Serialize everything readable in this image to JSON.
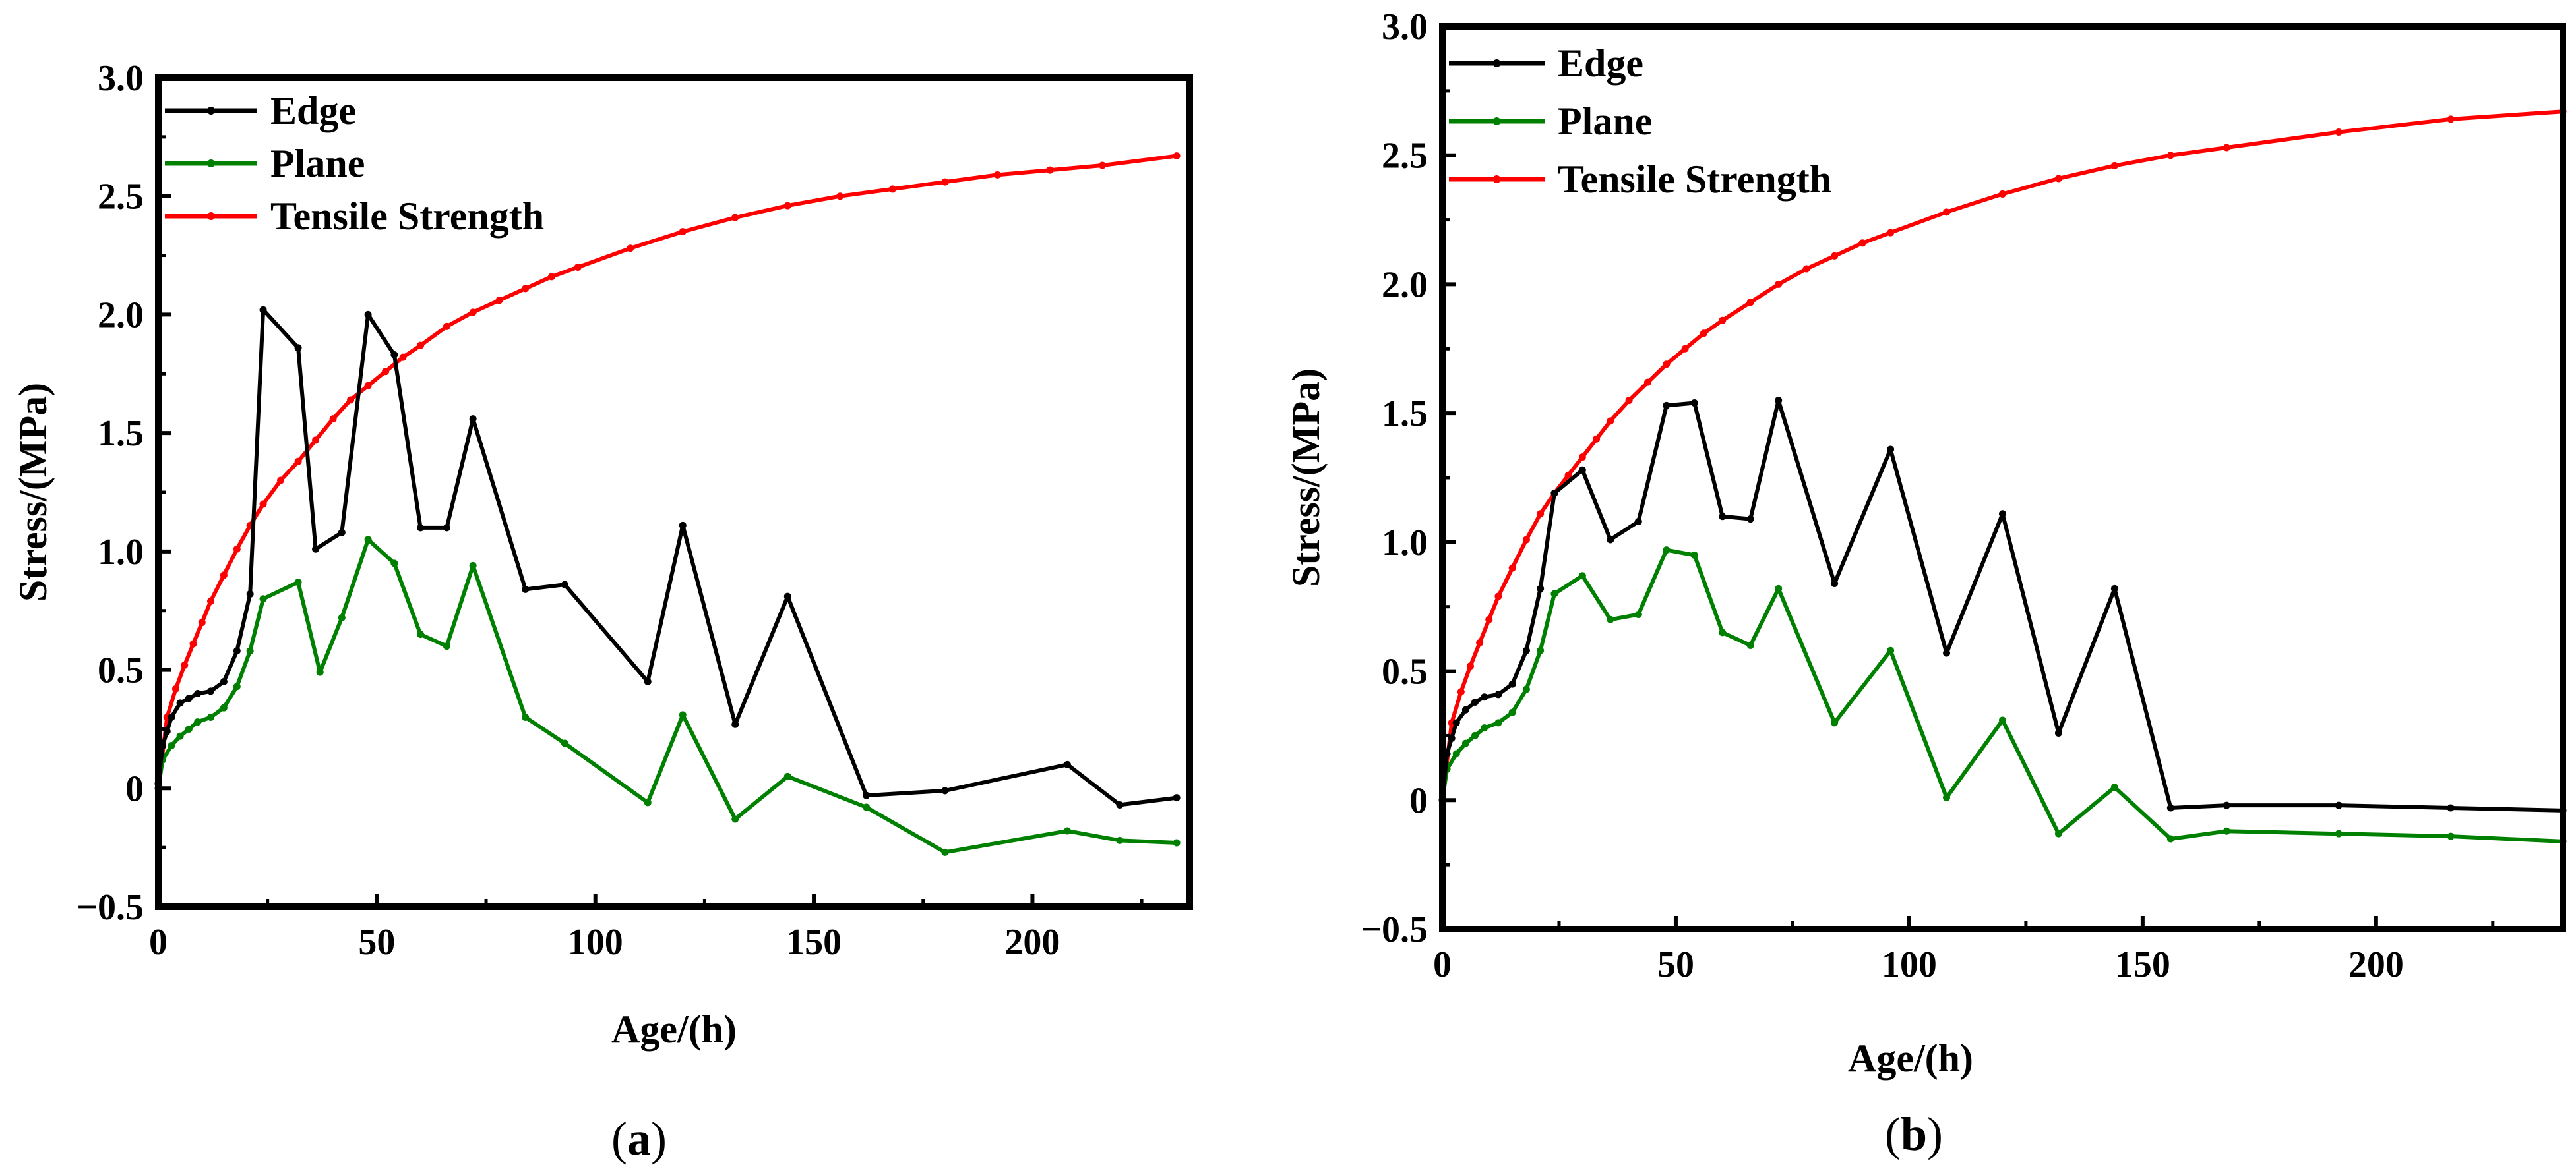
{
  "chart_data": [
    {
      "panel_label": "a",
      "type": "line",
      "title": "",
      "xlabel": "Age/(h)",
      "ylabel": "Stress/(MPa)",
      "xlim": [
        0,
        236
      ],
      "ylim": [
        -0.5,
        3.0
      ],
      "xticks": [
        "0",
        "50",
        "100",
        "150",
        "200"
      ],
      "xtick_values": [
        0,
        50,
        100,
        150,
        200
      ],
      "yticks": [
        "−0.5",
        "0",
        "0.5",
        "1.0",
        "1.5",
        "2.0",
        "2.5",
        "3.0"
      ],
      "ytick_values": [
        -0.5,
        0,
        0.5,
        1.0,
        1.5,
        2.0,
        2.5,
        3.0
      ],
      "legend_position": "top-left",
      "grid": false,
      "series": [
        {
          "name": "Edge",
          "color": "#000000",
          "x": [
            0,
            1,
            2,
            3,
            5,
            7,
            9,
            12,
            15,
            18,
            21,
            24,
            32,
            36,
            42,
            48,
            54,
            60,
            66,
            72,
            84,
            93,
            112,
            120,
            132,
            144,
            162,
            180,
            208,
            220,
            233
          ],
          "y": [
            0.02,
            0.18,
            0.24,
            0.3,
            0.36,
            0.38,
            0.4,
            0.41,
            0.45,
            0.58,
            0.82,
            2.02,
            1.86,
            1.01,
            1.08,
            2.0,
            1.83,
            1.1,
            1.1,
            1.56,
            0.84,
            0.86,
            0.45,
            1.11,
            0.27,
            0.81,
            -0.03,
            -0.01,
            0.1,
            -0.07,
            -0.04
          ]
        },
        {
          "name": "Plane",
          "color": "#008000",
          "x": [
            0,
            1,
            3,
            5,
            7,
            9,
            12,
            15,
            18,
            21,
            24,
            32,
            37,
            42,
            48,
            54,
            60,
            66,
            72,
            84,
            93,
            112,
            120,
            132,
            144,
            162,
            180,
            208,
            220,
            233
          ],
          "y": [
            0.0,
            0.12,
            0.18,
            0.22,
            0.25,
            0.28,
            0.3,
            0.34,
            0.43,
            0.58,
            0.8,
            0.87,
            0.49,
            0.72,
            1.05,
            0.95,
            0.65,
            0.6,
            0.94,
            0.3,
            0.19,
            -0.06,
            0.31,
            -0.13,
            0.05,
            -0.08,
            -0.27,
            -0.18,
            -0.22,
            -0.23
          ]
        },
        {
          "name": "Tensile Strength",
          "color": "#ff0000",
          "x": [
            0,
            2,
            4,
            6,
            8,
            10,
            12,
            15,
            18,
            21,
            24,
            28,
            32,
            36,
            40,
            44,
            48,
            52,
            56,
            60,
            66,
            72,
            78,
            84,
            90,
            96,
            108,
            120,
            132,
            144,
            156,
            168,
            180,
            192,
            204,
            216,
            233
          ],
          "y": [
            0.0,
            0.3,
            0.42,
            0.52,
            0.61,
            0.7,
            0.79,
            0.9,
            1.01,
            1.11,
            1.2,
            1.3,
            1.38,
            1.47,
            1.56,
            1.64,
            1.7,
            1.76,
            1.82,
            1.87,
            1.95,
            2.01,
            2.06,
            2.11,
            2.16,
            2.2,
            2.28,
            2.35,
            2.41,
            2.46,
            2.5,
            2.53,
            2.56,
            2.59,
            2.61,
            2.63,
            2.67
          ]
        }
      ]
    },
    {
      "panel_label": "b",
      "type": "line",
      "title": "",
      "xlabel": "Age/(h)",
      "ylabel": "Stress/(MPa)",
      "xlim": [
        0,
        240
      ],
      "ylim": [
        -0.5,
        3.0
      ],
      "xticks": [
        "0",
        "50",
        "100",
        "150",
        "200"
      ],
      "xtick_values": [
        0,
        50,
        100,
        150,
        200
      ],
      "yticks": [
        "−0.5",
        "0",
        "0.5",
        "1.0",
        "1.5",
        "2.0",
        "2.5",
        "3.0"
      ],
      "ytick_values": [
        -0.5,
        0,
        0.5,
        1.0,
        1.5,
        2.0,
        2.5,
        3.0
      ],
      "legend_position": "top-left",
      "grid": false,
      "series": [
        {
          "name": "Edge",
          "color": "#000000",
          "x": [
            0,
            1,
            2,
            3,
            5,
            7,
            9,
            12,
            15,
            18,
            21,
            24,
            30,
            36,
            42,
            48,
            54,
            60,
            66,
            72,
            84,
            96,
            108,
            120,
            132,
            144,
            156,
            168,
            192,
            216,
            240
          ],
          "y": [
            0.0,
            0.18,
            0.24,
            0.3,
            0.35,
            0.38,
            0.4,
            0.41,
            0.45,
            0.58,
            0.82,
            1.19,
            1.28,
            1.01,
            1.08,
            1.53,
            1.54,
            1.1,
            1.09,
            1.55,
            0.84,
            1.36,
            0.57,
            1.11,
            0.26,
            0.82,
            -0.03,
            -0.02,
            -0.02,
            -0.03,
            -0.04
          ]
        },
        {
          "name": "Plane",
          "color": "#008000",
          "x": [
            0,
            1,
            3,
            5,
            7,
            9,
            12,
            15,
            18,
            21,
            24,
            30,
            36,
            42,
            48,
            54,
            60,
            66,
            72,
            84,
            96,
            108,
            120,
            132,
            144,
            156,
            168,
            192,
            216,
            240
          ],
          "y": [
            0.0,
            0.12,
            0.18,
            0.22,
            0.25,
            0.28,
            0.3,
            0.34,
            0.43,
            0.58,
            0.8,
            0.87,
            0.7,
            0.72,
            0.97,
            0.95,
            0.65,
            0.6,
            0.82,
            0.3,
            0.58,
            0.01,
            0.31,
            -0.13,
            0.05,
            -0.15,
            -0.12,
            -0.13,
            -0.14,
            -0.16
          ]
        },
        {
          "name": "Tensile Strength",
          "color": "#ff0000",
          "x": [
            0,
            2,
            4,
            6,
            8,
            10,
            12,
            15,
            18,
            21,
            24,
            27,
            30,
            33,
            36,
            40,
            44,
            48,
            52,
            56,
            60,
            66,
            72,
            78,
            84,
            90,
            96,
            108,
            120,
            132,
            144,
            156,
            168,
            192,
            216,
            240
          ],
          "y": [
            0.0,
            0.3,
            0.42,
            0.52,
            0.61,
            0.7,
            0.79,
            0.9,
            1.01,
            1.11,
            1.19,
            1.26,
            1.33,
            1.4,
            1.47,
            1.55,
            1.62,
            1.69,
            1.75,
            1.81,
            1.86,
            1.93,
            2.0,
            2.06,
            2.11,
            2.16,
            2.2,
            2.28,
            2.35,
            2.41,
            2.46,
            2.5,
            2.53,
            2.59,
            2.64,
            2.67
          ]
        }
      ]
    }
  ]
}
